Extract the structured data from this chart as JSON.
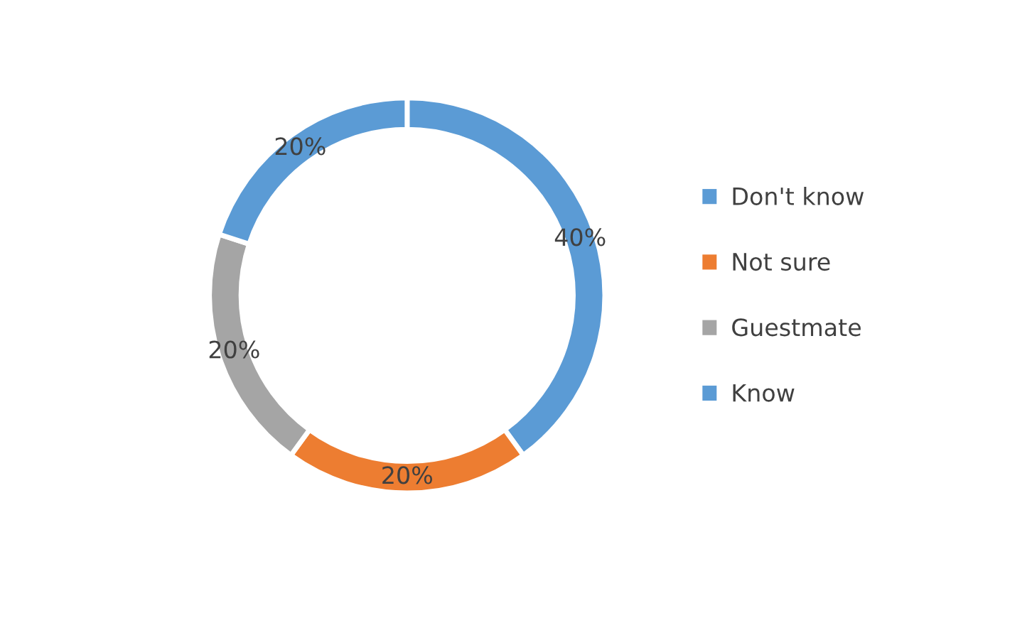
{
  "chart_data": {
    "type": "donut",
    "categories": [
      "Don't know",
      "Not sure",
      "Guestmate",
      "Know"
    ],
    "values": [
      40,
      20,
      20,
      20
    ],
    "colors": [
      "#5b9bd5",
      "#ed7d31",
      "#a5a5a5",
      "#5b9bd5"
    ],
    "value_labels": [
      "40%",
      "20%",
      "20%",
      "20%"
    ],
    "legend": "right"
  }
}
